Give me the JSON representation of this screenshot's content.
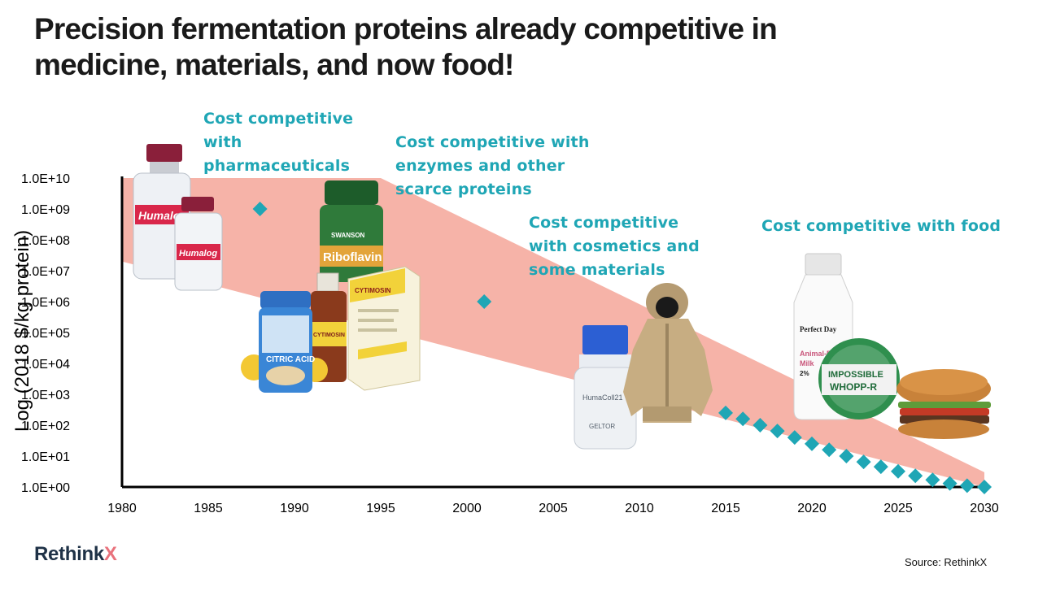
{
  "title_lines": [
    "Precision fermentation proteins already competitive in",
    "medicine, materials, and now food!"
  ],
  "annotations": [
    {
      "lines": [
        "Cost competitive",
        "with",
        "pharmaceuticals"
      ]
    },
    {
      "lines": [
        "Cost competitive with",
        "enzymes and other",
        "scarce proteins"
      ]
    },
    {
      "lines": [
        "Cost competitive",
        "with cosmetics  and",
        "some materials"
      ]
    },
    {
      "lines": [
        "Cost competitive with food"
      ]
    }
  ],
  "product_labels": {
    "humalog": "Humalog",
    "swanson": "SWANSON",
    "riboflavin": "Riboflavin",
    "citric_acid": "CITRIC ACID",
    "cytimosin": "CYTIMOSIN",
    "humacoll": "HumaColl21",
    "geltor": "GELTOR",
    "perfect_day": "Perfect Day",
    "milk_line1": "Animal-F",
    "milk_line2": "Milk",
    "milk_pct": "2%",
    "impossible": "IMPOSSIBLE",
    "whopper": "WHOPP-R"
  },
  "logo": {
    "text": "Rethink",
    "accent": "X"
  },
  "source": "Source: RethinkX",
  "colors": {
    "band": "#f6b3a8",
    "marker": "#1fa6b5",
    "annotation": "#1fa6b5",
    "axis": "#000000"
  },
  "chart_data": {
    "type": "scatter",
    "title": "Precision fermentation proteins already competitive in medicine, materials, and now food!",
    "xlabel": "",
    "ylabel": "Log (2018 $/kg protein)",
    "y_scale": "log",
    "xlim": [
      1980,
      2030
    ],
    "ylim": [
      1,
      10000000000
    ],
    "x_ticks": [
      "1980",
      "1985",
      "1990",
      "1995",
      "2000",
      "2005",
      "2010",
      "2015",
      "2020",
      "2025",
      "2030"
    ],
    "y_ticks": [
      "1.0E+00",
      "1.0E+01",
      "1.0E+02",
      "1.0E+03",
      "1.0E+04",
      "1.0E+05",
      "1.0E+06",
      "1.0E+07",
      "1.0E+08",
      "1.0E+09",
      "1.0E+10"
    ],
    "grid": false,
    "band": {
      "upper": [
        [
          1980,
          10000000000
        ],
        [
          1995,
          10000000000
        ],
        [
          2030,
          3
        ]
      ],
      "lower": [
        [
          2030,
          1
        ],
        [
          1980,
          20000000
        ]
      ]
    },
    "series": [
      {
        "x": [
          1988,
          2001,
          2015,
          2016,
          2017,
          2018,
          2019,
          2020,
          2021,
          2022,
          2023,
          2024,
          2025,
          2026,
          2027,
          2028,
          2029,
          2030
        ],
        "y": [
          1000000000,
          1000000,
          250,
          160,
          100,
          65,
          40,
          25,
          16,
          10,
          6.5,
          4.5,
          3.2,
          2.3,
          1.7,
          1.3,
          1.1,
          1.0
        ]
      }
    ]
  }
}
